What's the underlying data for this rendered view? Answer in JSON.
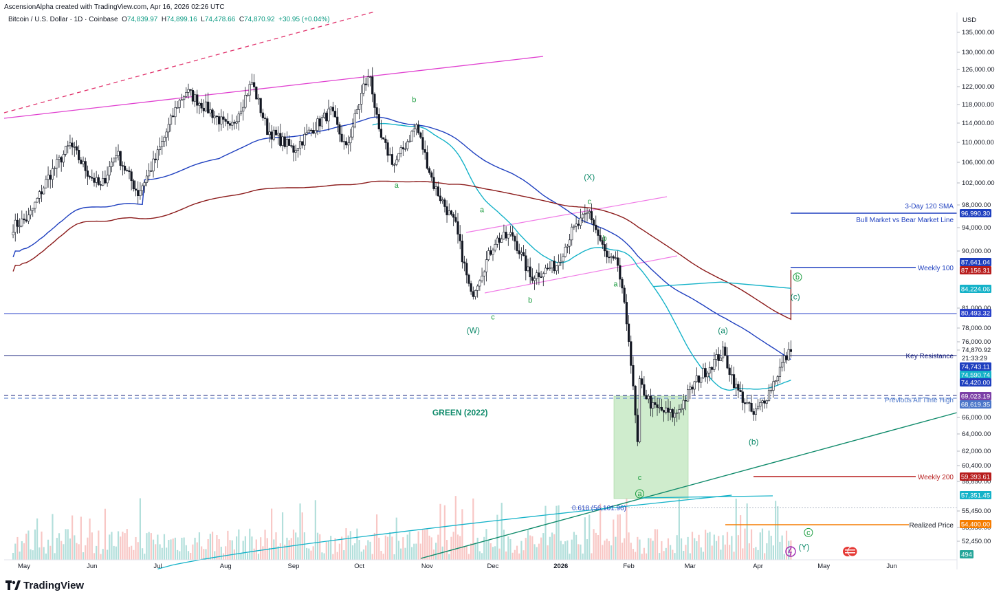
{
  "header": {
    "created": "AscensionAlpha created with TradingView.com, Apr 16, 2026 02:26 UTC",
    "symbol": "Bitcoin / U.S. Dollar · 1D · Coinbase",
    "open_label": "O",
    "open": "74,839.97",
    "high_label": "H",
    "high": "74,899.16",
    "low_label": "L",
    "low": "74,478.66",
    "close_label": "C",
    "close": "74,870.92",
    "change": "+30.95 (+0.04%)"
  },
  "brand": {
    "logo_text": "TradingView",
    "logo_icon": "tradingview-logo-icon"
  },
  "colors": {
    "up": "#26a69a",
    "down": "#ef5350",
    "ma_blue": "#1e3fbf",
    "ma_cyan": "#14b2c8",
    "ma_maroon": "#8b1a1a",
    "magenta": "#e040d0",
    "key_line": "#1a237e",
    "green_zone": "#cfeccd"
  },
  "chart_data": {
    "type": "candlestick",
    "title": "",
    "currency": "USD",
    "y_axis": {
      "scale": "log",
      "ticks": [
        "135,000.00",
        "130,000.00",
        "126,000.00",
        "122,000.00",
        "118,000.00",
        "114,000.00",
        "110,000.00",
        "106,000.00",
        "102,000.00",
        "98,000.00",
        "94,000.00",
        "90,000.00",
        "81,000.00",
        "78,000.00",
        "76,000.00",
        "74,870.92",
        "66,000.00",
        "64,000.00",
        "62,000.00",
        "60,400.00",
        "58,650.00",
        "55,450.00",
        "53,850.00",
        "52,450.00"
      ],
      "countdown": "21:33:29"
    },
    "x_axis": {
      "ticks": [
        "May",
        "Jun",
        "Jul",
        "Aug",
        "Sep",
        "Oct",
        "Nov",
        "Dec",
        "2026",
        "Feb",
        "Mar",
        "Apr",
        "May",
        "Jun"
      ]
    },
    "price_path": [
      [
        "2025-04-26",
        94500
      ],
      [
        "2025-05-03",
        96000
      ],
      [
        "2025-05-12",
        103500
      ],
      [
        "2025-05-22",
        110000
      ],
      [
        "2025-05-30",
        104500
      ],
      [
        "2025-06-05",
        101500
      ],
      [
        "2025-06-12",
        108500
      ],
      [
        "2025-06-22",
        100500
      ],
      [
        "2025-06-30",
        107000
      ],
      [
        "2025-07-10",
        118500
      ],
      [
        "2025-07-14",
        121500
      ],
      [
        "2025-07-25",
        117000
      ],
      [
        "2025-08-03",
        113000
      ],
      [
        "2025-08-13",
        123500
      ],
      [
        "2025-08-20",
        113000
      ],
      [
        "2025-09-01",
        109000
      ],
      [
        "2025-09-10",
        113500
      ],
      [
        "2025-09-18",
        117000
      ],
      [
        "2025-09-25",
        109000
      ],
      [
        "2025-10-03",
        122500
      ],
      [
        "2025-10-06",
        125000
      ],
      [
        "2025-10-10",
        112000
      ],
      [
        "2025-10-17",
        106000
      ],
      [
        "2025-10-27",
        114000
      ],
      [
        "2025-11-04",
        102000
      ],
      [
        "2025-11-14",
        94500
      ],
      [
        "2025-11-21",
        83000
      ],
      [
        "2025-12-02",
        92000
      ],
      [
        "2025-12-10",
        93000
      ],
      [
        "2025-12-18",
        86000
      ],
      [
        "2025-12-30",
        88000
      ],
      [
        "2026-01-06",
        93500
      ],
      [
        "2026-01-14",
        97000
      ],
      [
        "2026-01-22",
        89000
      ],
      [
        "2026-01-27",
        88000
      ],
      [
        "2026-02-01",
        77000
      ],
      [
        "2026-02-05",
        63000
      ],
      [
        "2026-02-06",
        70500
      ],
      [
        "2026-02-12",
        67500
      ],
      [
        "2026-02-22",
        66500
      ],
      [
        "2026-03-04",
        71000
      ],
      [
        "2026-03-16",
        74800
      ],
      [
        "2026-03-22",
        70000
      ],
      [
        "2026-03-30",
        66500
      ],
      [
        "2026-04-06",
        69500
      ],
      [
        "2026-04-13",
        73800
      ],
      [
        "2026-04-16",
        74870.92
      ]
    ],
    "series": [
      {
        "name": "3-Day 120 SMA"
      },
      {
        "name": "Weekly 100"
      },
      {
        "name": "Weekly 200"
      },
      {
        "name": "Realized Price"
      }
    ],
    "horizontal_levels": [
      {
        "label": "3-Day 120 SMA",
        "sublabel": "Bull Market vs Bear Market Line",
        "price": 96990.3,
        "tag": "96,990.30",
        "color": "#1e3fbf"
      },
      {
        "label": "Weekly 100",
        "price": 87641.04,
        "tag": "87,641.04",
        "color": "#1e3fbf"
      },
      {
        "label": "",
        "price": 87156.31,
        "tag": "87,156.31",
        "color": "#b71c1c"
      },
      {
        "label": "",
        "price": 84224.06,
        "tag": "84,224.06",
        "color": "#14b2c8"
      },
      {
        "label": "",
        "price": 80493.32,
        "tag": "80,493.32",
        "color": "#2941c9"
      },
      {
        "label": "Key Resistance",
        "price": 74743.11,
        "tag": "74,743.11",
        "color": "#1e3fbf"
      },
      {
        "label": "",
        "price": 74590.74,
        "tag": "74,590.74",
        "color": "#14b2c8"
      },
      {
        "label": "",
        "price": 74420.0,
        "tag": "74,420.00",
        "color": "#1e3fbf"
      },
      {
        "label": "",
        "price": 69023.19,
        "tag": "69,023.19",
        "color": "#7b3fa6"
      },
      {
        "label": "Previous All Time High",
        "price": 68619.35,
        "tag": "68,619.35",
        "color": "#4b76c9"
      },
      {
        "label": "Weekly 200",
        "price": 59393.61,
        "tag": "59,393.61",
        "color": "#b71c1c"
      },
      {
        "label": "",
        "price": 57351.45,
        "tag": "57,351.45",
        "color": "#14b2c8"
      },
      {
        "label": "Realized Price",
        "price": 54400.0,
        "tag": "54,400.00",
        "color": "#f57c00"
      }
    ],
    "volume_tag": "494",
    "fib_label": "0.618 (56,101.96)",
    "annotations": [
      {
        "text": "b",
        "date": "2025-10-26",
        "price": 119000
      },
      {
        "text": "a",
        "date": "2025-10-18",
        "price": 101500
      },
      {
        "text": "a",
        "date": "2025-11-26",
        "price": 97000
      },
      {
        "text": "(X)",
        "date": "2026-01-14",
        "price": 103000
      },
      {
        "text": "c",
        "date": "2026-01-14",
        "price": 98500
      },
      {
        "text": "b",
        "date": "2026-01-21",
        "price": 92000
      },
      {
        "text": "b",
        "date": "2025-12-18",
        "price": 82000
      },
      {
        "text": "a",
        "date": "2026-01-26",
        "price": 84500
      },
      {
        "text": "c",
        "date": "2025-12-01",
        "price": 79500
      },
      {
        "text": "(W)",
        "date": "2025-11-22",
        "price": 77500
      },
      {
        "text": "(a)",
        "date": "2026-03-16",
        "price": 77500
      },
      {
        "text": "(b)",
        "date": "2026-03-30",
        "price": 63000
      },
      {
        "text": "c",
        "date": "2026-02-06",
        "price": 59000
      },
      {
        "text": "(c)",
        "date": "2026-04-18",
        "price": 82500
      },
      {
        "text": "(Y)",
        "date": "2026-04-22",
        "price": 51800
      },
      {
        "text": "GREEN (2022)",
        "date": "2025-11-16",
        "price": 66500
      }
    ],
    "circled_labels": [
      "b",
      "a",
      "c"
    ],
    "grid": false,
    "legend": "none"
  }
}
